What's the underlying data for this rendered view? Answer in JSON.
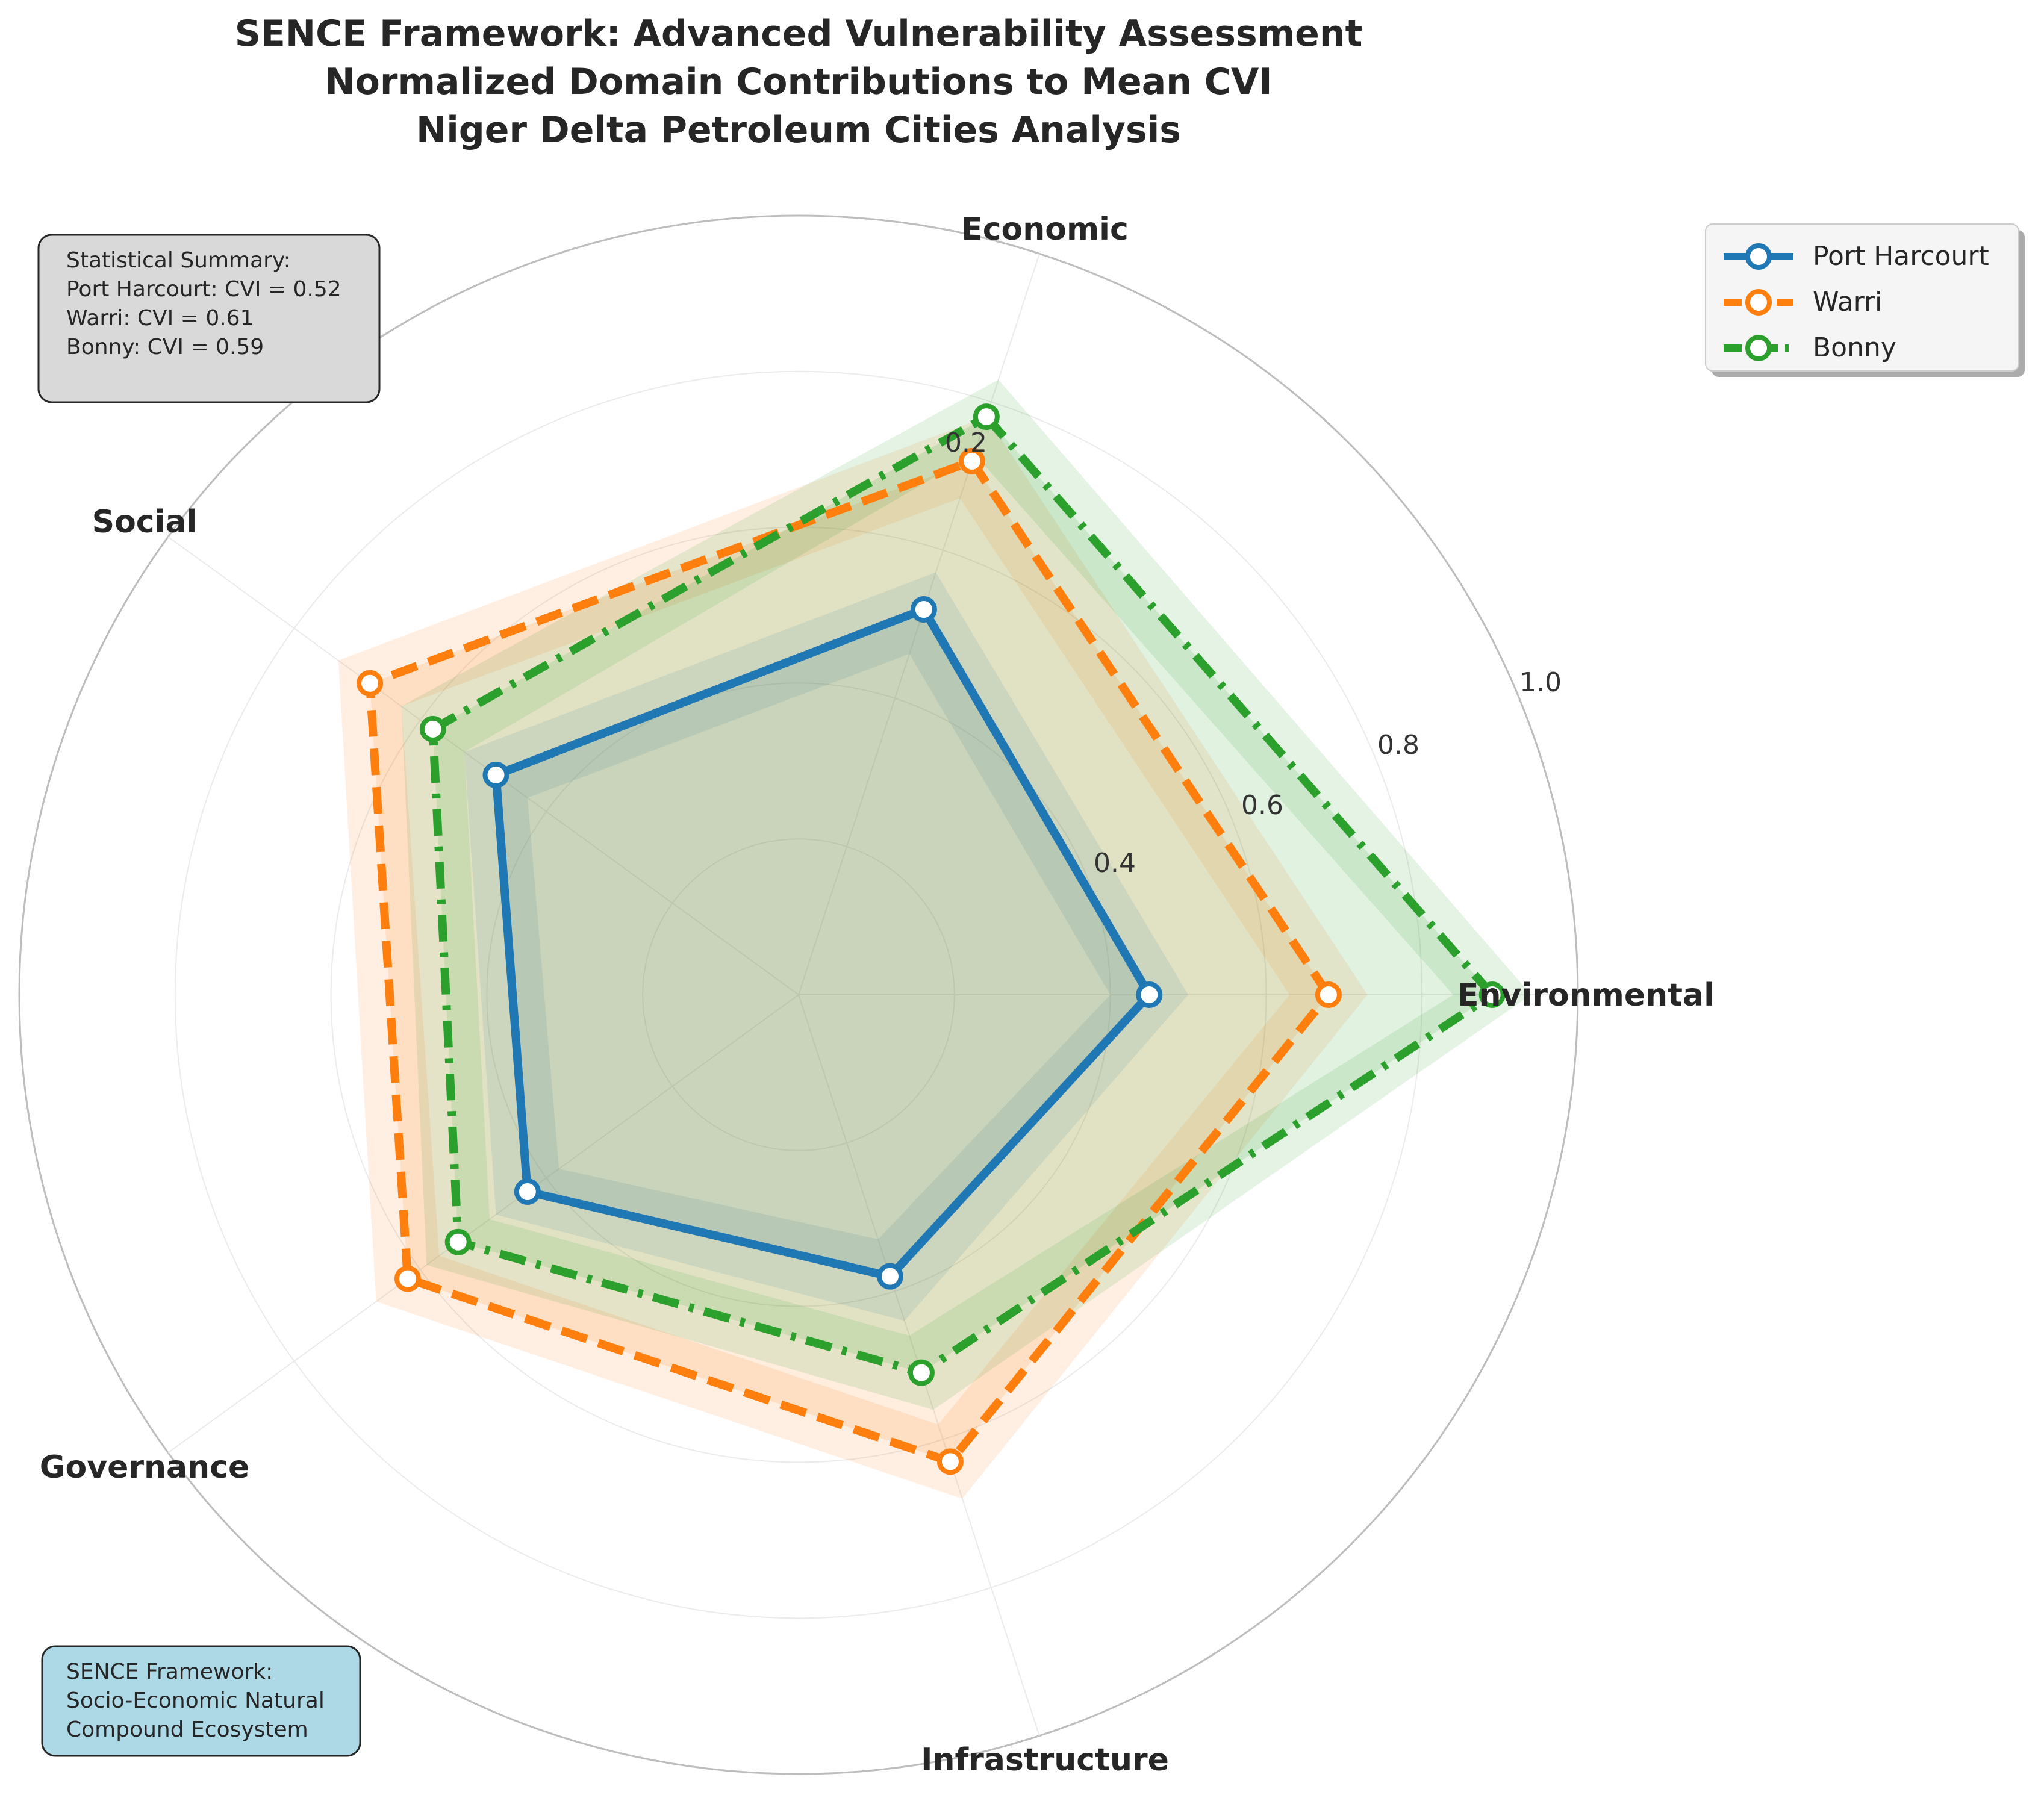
{
  "chart_data": {
    "type": "radar",
    "title_lines": [
      "SENCE Framework: Advanced Vulnerability Assessment",
      "Normalized Domain Contributions to Mean CVI",
      "Niger Delta Petroleum Cities Analysis"
    ],
    "axes": [
      "Environmental",
      "Economic",
      "Social",
      "Governance",
      "Infrastructure"
    ],
    "rlim": [
      0,
      1.0
    ],
    "r_ticks": [
      "0.2",
      "0.4",
      "0.6",
      "0.8",
      "1.0"
    ],
    "r_tick_values": [
      0.2,
      0.4,
      0.6,
      0.8,
      1.0
    ],
    "series": [
      {
        "name": "Port Harcourt",
        "color": "#1f77b4",
        "line_style": "solid",
        "values": [
          0.45,
          0.52,
          0.48,
          0.43,
          0.38
        ],
        "band_low": [
          0.4,
          0.46,
          0.43,
          0.38,
          0.33
        ],
        "band_high": [
          0.5,
          0.57,
          0.53,
          0.48,
          0.44
        ]
      },
      {
        "name": "Warri",
        "color": "#ff7f0e",
        "line_style": "dashed",
        "values": [
          0.68,
          0.72,
          0.68,
          0.62,
          0.63
        ],
        "band_low": [
          0.63,
          0.67,
          0.63,
          0.57,
          0.58
        ],
        "band_high": [
          0.73,
          0.78,
          0.73,
          0.67,
          0.68
        ]
      },
      {
        "name": "Bonny",
        "color": "#2ca02c",
        "line_style": "dashdot",
        "values": [
          0.89,
          0.78,
          0.58,
          0.54,
          0.51
        ],
        "band_low": [
          0.84,
          0.73,
          0.53,
          0.49,
          0.46
        ],
        "band_high": [
          0.94,
          0.83,
          0.63,
          0.59,
          0.56
        ]
      }
    ],
    "legend_position": "top-right"
  },
  "summary_box": {
    "lines": [
      "Statistical Summary:",
      "Port Harcourt: CVI = 0.52",
      "Warri: CVI = 0.61",
      "Bonny: CVI = 0.59"
    ],
    "bg_color": "#d9d9d9"
  },
  "framework_box": {
    "lines": [
      "SENCE Framework:",
      "Socio-Economic Natural",
      "Compound Ecosystem"
    ],
    "bg_color": "#add8e6"
  }
}
